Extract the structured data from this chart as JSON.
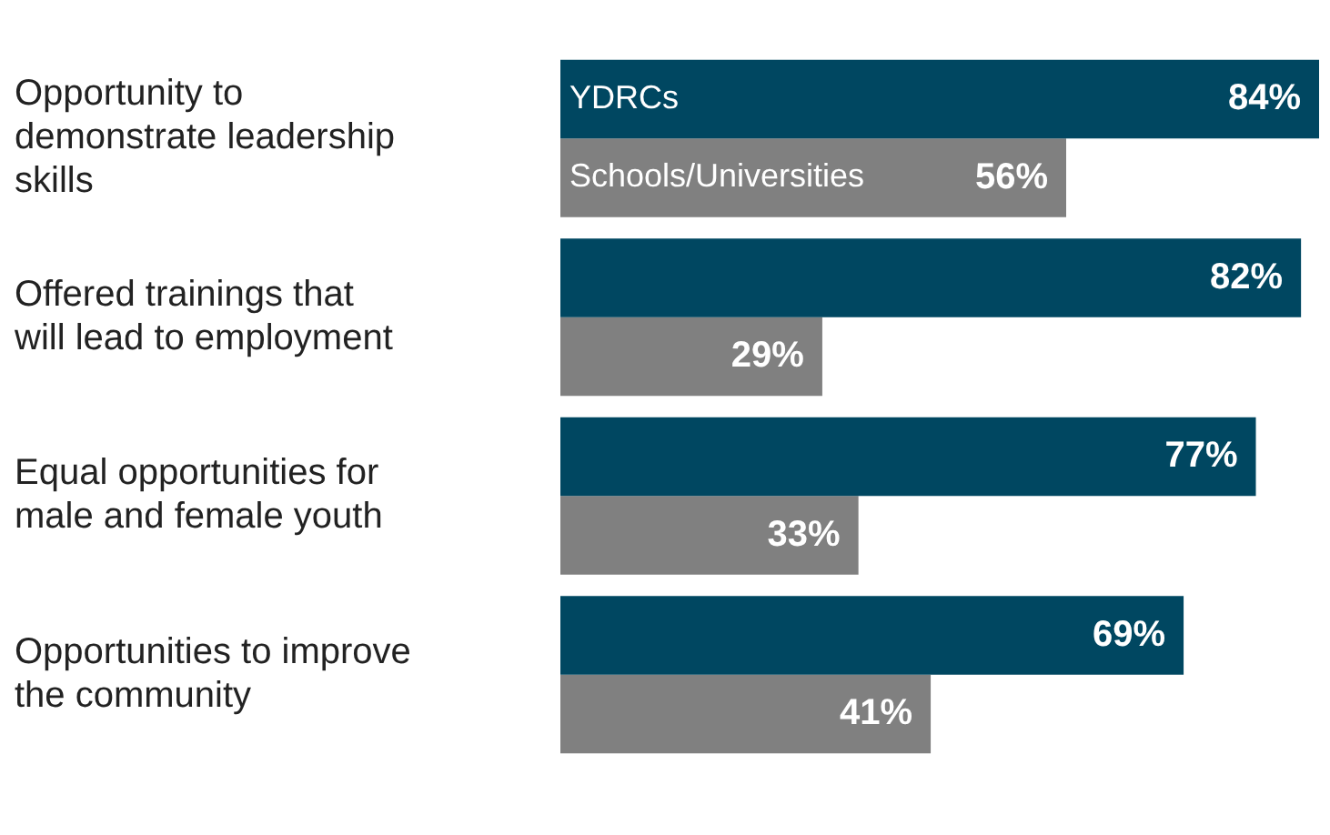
{
  "chart_data": {
    "type": "bar",
    "orientation": "horizontal",
    "categories": [
      "Opportunity to demonstrate leadership skills",
      "Offered trainings that will lead to employment",
      "Equal opportunities for male and female youth",
      "Opportunities to improve the community"
    ],
    "series": [
      {
        "name": "YDRCs",
        "color": "#004761",
        "values": [
          84,
          82,
          77,
          69
        ],
        "value_labels": [
          "84%",
          "82%",
          "77%",
          "69%"
        ]
      },
      {
        "name": "Schools/Universities",
        "color": "#808080",
        "values": [
          56,
          29,
          33,
          41
        ],
        "value_labels": [
          "56%",
          "29%",
          "33%",
          "41%"
        ]
      }
    ]
  }
}
